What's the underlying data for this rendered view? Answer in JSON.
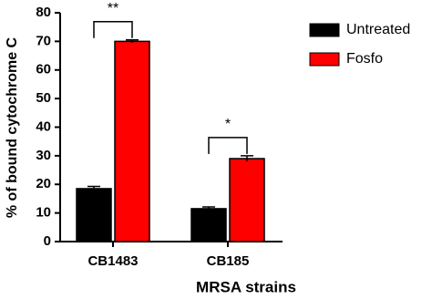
{
  "chart_data": {
    "type": "bar",
    "y_label": "% of bound cytochrome C",
    "x_label": "MRSA strains",
    "categories": [
      "CB1483",
      "CB185"
    ],
    "series": [
      {
        "name": "Untreated",
        "color": "#000000",
        "values": [
          18.5,
          11.5
        ],
        "errors": [
          0.8,
          0.6
        ]
      },
      {
        "name": "Fosfo",
        "color": "#ff0000",
        "values": [
          70,
          29
        ],
        "errors": [
          0.5,
          1.0
        ]
      }
    ],
    "significance": [
      "**",
      "*"
    ],
    "ylim": [
      0,
      80
    ],
    "yticks": [
      0,
      10,
      20,
      30,
      40,
      50,
      60,
      70,
      80
    ],
    "legend": "right"
  }
}
